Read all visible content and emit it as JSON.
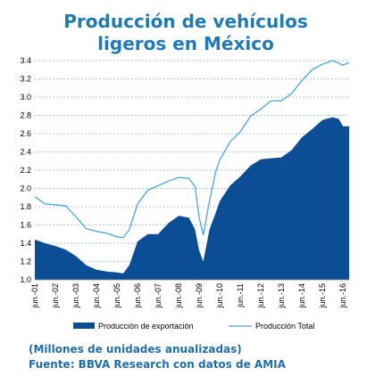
{
  "chart_data": {
    "type": "area",
    "title": "Producción de vehículos ligeros en México",
    "xlabel": "",
    "ylabel": "",
    "ylim": [
      1.0,
      3.4
    ],
    "yticks": [
      "1.0",
      "1.2",
      "1.4",
      "1.6",
      "1.8",
      "2.0",
      "2.2",
      "2.4",
      "2.6",
      "2.8",
      "3.0",
      "3.2",
      "3.4"
    ],
    "x_tick_labels": [
      "jun.-01",
      "jun.-02",
      "jun.-03",
      "jun.-04",
      "jun.-05",
      "jun.-06",
      "jun.-07",
      "jun.-08",
      "jun.-09",
      "jun.-10",
      "jun.-11",
      "jun.-12",
      "jun.-13",
      "jun.-14",
      "jun.-15",
      "jun.-16"
    ],
    "x": [
      2001.0,
      2001.5,
      2002.0,
      2002.5,
      2003.0,
      2003.5,
      2004.0,
      2004.5,
      2005.0,
      2005.3,
      2005.6,
      2006.0,
      2006.5,
      2007.0,
      2007.5,
      2008.0,
      2008.5,
      2008.8,
      2009.0,
      2009.2,
      2009.5,
      2009.8,
      2010.0,
      2010.5,
      2011.0,
      2011.5,
      2012.0,
      2012.5,
      2013.0,
      2013.5,
      2014.0,
      2014.5,
      2015.0,
      2015.5,
      2015.8,
      2016.0,
      2016.3
    ],
    "series": [
      {
        "name": "Producción de exportación",
        "style": "area",
        "color": "#0c4e96",
        "values": [
          1.44,
          1.4,
          1.37,
          1.33,
          1.26,
          1.16,
          1.11,
          1.09,
          1.08,
          1.07,
          1.16,
          1.42,
          1.5,
          1.5,
          1.62,
          1.7,
          1.68,
          1.55,
          1.32,
          1.2,
          1.55,
          1.73,
          1.86,
          2.03,
          2.13,
          2.25,
          2.32,
          2.33,
          2.34,
          2.42,
          2.56,
          2.65,
          2.75,
          2.78,
          2.76,
          2.68,
          2.68
        ]
      },
      {
        "name": "Producción Total",
        "style": "line",
        "color": "#4aa5e0",
        "values": [
          1.91,
          1.83,
          1.82,
          1.81,
          1.69,
          1.56,
          1.53,
          1.51,
          1.47,
          1.46,
          1.55,
          1.83,
          1.98,
          2.03,
          2.08,
          2.12,
          2.11,
          2.02,
          1.68,
          1.49,
          1.86,
          2.18,
          2.31,
          2.51,
          2.62,
          2.79,
          2.87,
          2.96,
          2.96,
          3.04,
          3.18,
          3.3,
          3.36,
          3.4,
          3.37,
          3.35,
          3.38
        ]
      }
    ],
    "grid": true,
    "legend": "bottom"
  },
  "footnotes": {
    "units": "(Millones de unidades anualizadas)",
    "source": "Fuente: BBVA Research con datos de AMIA"
  },
  "colors": {
    "title": "#1f7ab8",
    "grid": "#7fb8e3",
    "export_area": "#0c4e96",
    "total_line": "#4aa5e0"
  }
}
